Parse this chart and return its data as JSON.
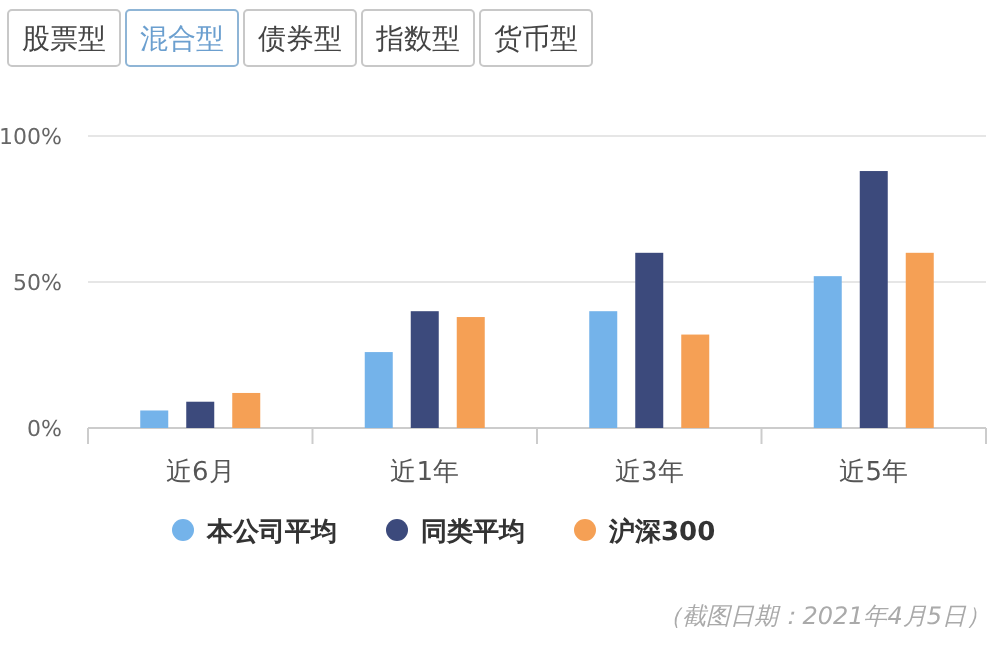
{
  "chart_data": {
    "type": "bar",
    "categories": [
      "近6月",
      "近1年",
      "近3年",
      "近5年"
    ],
    "series": [
      {
        "name": "本公司平均",
        "color": "#74b3ea",
        "values": [
          6,
          26,
          40,
          52
        ]
      },
      {
        "name": "同类平均",
        "color": "#3c4a7c",
        "values": [
          9,
          40,
          60,
          88
        ]
      },
      {
        "name": "沪深300",
        "color": "#f5a055",
        "values": [
          12,
          38,
          32,
          60
        ]
      }
    ],
    "ylim": [
      0,
      100
    ],
    "yticks": [
      {
        "value": 0,
        "label": "0%"
      },
      {
        "value": 50,
        "label": "50%"
      },
      {
        "value": 100,
        "label": "100%"
      }
    ],
    "grid": "y",
    "legend": "bottom",
    "annotations": [
      "股票型",
      "混合型",
      "债券型",
      "指数型",
      "货币型",
      "（截图日期：2021年4月5日）"
    ]
  }
}
